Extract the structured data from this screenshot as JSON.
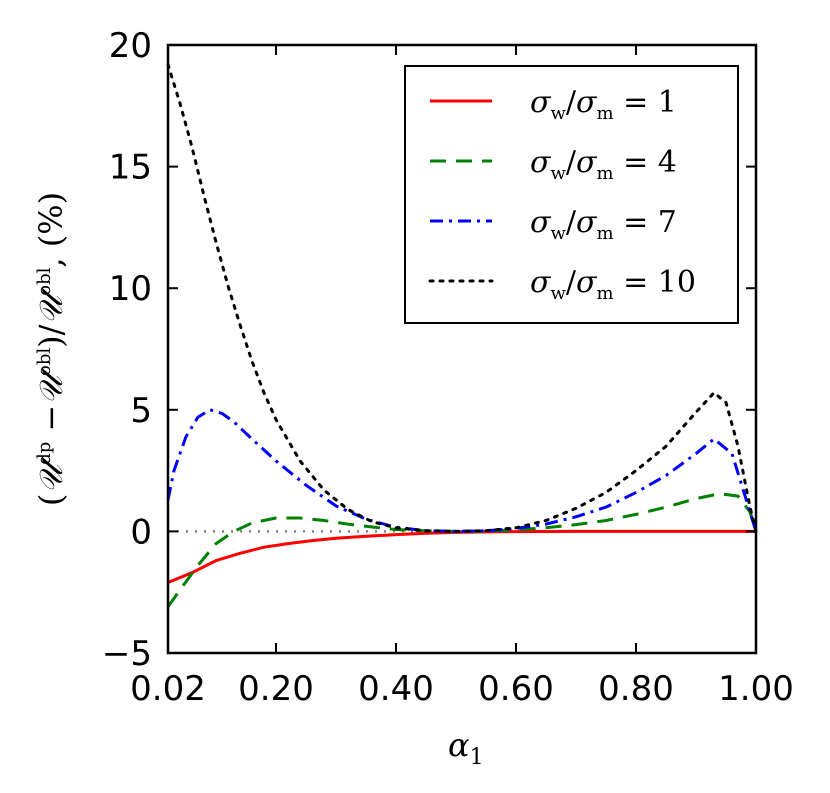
{
  "chart_data": {
    "type": "line",
    "title": "",
    "xlabel": "α₁",
    "ylabel": "(𝒰ᵈᵖ − 𝒰ᵒᵇˡ)/𝒰ᵒᵇˡ, (%)",
    "xlim": [
      0.02,
      1.0
    ],
    "ylim": [
      -5,
      20
    ],
    "xticks": [
      0.02,
      0.2,
      0.4,
      0.6,
      0.8,
      1.0
    ],
    "xtick_labels": [
      "0.02",
      "0.20",
      "0.40",
      "0.60",
      "0.80",
      "1.00"
    ],
    "yticks": [
      -5,
      0,
      5,
      10,
      15,
      20
    ],
    "ytick_labels": [
      "−5",
      "0",
      "5",
      "10",
      "15",
      "20"
    ],
    "reference_line": {
      "y": 0,
      "color": "#808080",
      "style": "dotted"
    },
    "legend_position": "top-right",
    "series": [
      {
        "name": "σw/σm = 1",
        "color": "#ff0000",
        "style": "solid",
        "x": [
          0.02,
          0.06,
          0.1,
          0.14,
          0.18,
          0.22,
          0.26,
          0.3,
          0.35,
          0.4,
          0.45,
          0.5,
          0.55,
          0.6,
          0.7,
          0.8,
          0.9,
          0.95,
          1.0
        ],
        "y": [
          -2.1,
          -1.7,
          -1.2,
          -0.9,
          -0.65,
          -0.5,
          -0.38,
          -0.28,
          -0.2,
          -0.13,
          -0.08,
          -0.04,
          -0.02,
          -0.01,
          0,
          0,
          0,
          0,
          0
        ]
      },
      {
        "name": "σw/σm = 4",
        "color": "#008000",
        "style": "dashed",
        "x": [
          0.02,
          0.04,
          0.07,
          0.1,
          0.13,
          0.16,
          0.2,
          0.24,
          0.28,
          0.32,
          0.36,
          0.4,
          0.45,
          0.5,
          0.55,
          0.6,
          0.65,
          0.7,
          0.75,
          0.8,
          0.85,
          0.9,
          0.94,
          0.97,
          0.99,
          1.0
        ],
        "y": [
          -3.1,
          -2.4,
          -1.4,
          -0.5,
          0.0,
          0.35,
          0.55,
          0.55,
          0.45,
          0.3,
          0.18,
          0.08,
          0.02,
          0.0,
          0.01,
          0.06,
          0.15,
          0.28,
          0.45,
          0.7,
          1.0,
          1.35,
          1.55,
          1.45,
          0.8,
          0.0
        ]
      },
      {
        "name": "σw/σm = 7",
        "color": "#0000ff",
        "style": "dashdot",
        "x": [
          0.02,
          0.03,
          0.05,
          0.07,
          0.09,
          0.11,
          0.13,
          0.16,
          0.2,
          0.25,
          0.3,
          0.35,
          0.4,
          0.45,
          0.5,
          0.55,
          0.6,
          0.65,
          0.7,
          0.75,
          0.8,
          0.85,
          0.9,
          0.93,
          0.96,
          0.98,
          1.0
        ],
        "y": [
          1.3,
          2.5,
          3.9,
          4.7,
          5.0,
          4.85,
          4.5,
          3.8,
          2.9,
          1.9,
          1.05,
          0.5,
          0.17,
          0.03,
          0.0,
          0.03,
          0.12,
          0.3,
          0.6,
          1.0,
          1.6,
          2.3,
          3.2,
          3.8,
          3.2,
          1.6,
          0.0
        ]
      },
      {
        "name": "σw/σm = 10",
        "color": "#000000",
        "style": "dotted",
        "x": [
          0.02,
          0.04,
          0.06,
          0.08,
          0.1,
          0.12,
          0.14,
          0.16,
          0.18,
          0.2,
          0.24,
          0.28,
          0.32,
          0.36,
          0.4,
          0.45,
          0.5,
          0.55,
          0.6,
          0.65,
          0.7,
          0.75,
          0.8,
          0.85,
          0.9,
          0.93,
          0.95,
          0.97,
          0.99,
          1.0
        ],
        "y": [
          19.2,
          17.6,
          15.8,
          13.8,
          11.9,
          10.1,
          8.5,
          7.0,
          5.7,
          4.6,
          2.9,
          1.7,
          0.9,
          0.4,
          0.15,
          0.03,
          0.0,
          0.03,
          0.15,
          0.45,
          0.95,
          1.6,
          2.5,
          3.5,
          4.9,
          5.7,
          5.3,
          3.5,
          1.0,
          0.0
        ]
      }
    ],
    "legend": [
      {
        "lhs": "σ",
        "lhs_sub": "w",
        "rhs": "σ",
        "rhs_sub": "m",
        "value": "1"
      },
      {
        "lhs": "σ",
        "lhs_sub": "w",
        "rhs": "σ",
        "rhs_sub": "m",
        "value": "4"
      },
      {
        "lhs": "σ",
        "lhs_sub": "w",
        "rhs": "σ",
        "rhs_sub": "m",
        "value": "7"
      },
      {
        "lhs": "σ",
        "lhs_sub": "w",
        "rhs": "σ",
        "rhs_sub": "m",
        "value": "10"
      }
    ],
    "axis_text": {
      "x_main": "α",
      "x_sub": "1",
      "y_open": "(",
      "y_u1": "𝒰",
      "y_sup1": "dp",
      "y_minus": " −",
      "y_u2": "𝒰",
      "y_sup2": "obl",
      "y_mid": ")/",
      "y_u3": "𝒰",
      "y_sup3": "obl",
      "y_tail": ", (%)"
    }
  }
}
